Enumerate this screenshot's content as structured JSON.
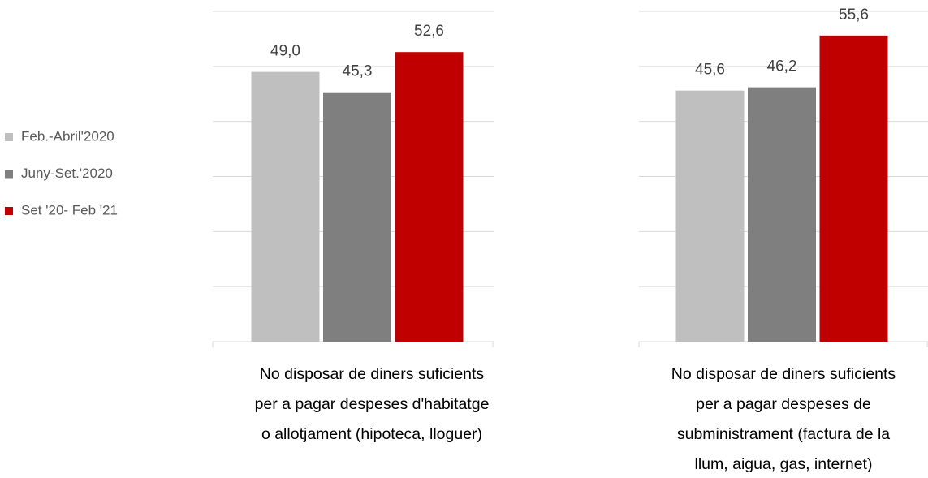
{
  "chart_data": {
    "type": "bar",
    "categories": [
      "No disposar de diners suficients\nper a pagar despeses d'habitatge\no allotjament (hipoteca, lloguer)",
      "No disposar de diners suficients\nper a pagar despeses de\nsubministrament (factura de la\nllum, aigua, gas, internet)"
    ],
    "series": [
      {
        "name": "Feb.-Abril'2020",
        "color": "#bfbfbf",
        "values": [
          49.0,
          45.6
        ],
        "value_labels": [
          "49,0",
          "45,6"
        ]
      },
      {
        "name": "Juny-Set.'2020",
        "color": "#7f7f7f",
        "values": [
          45.3,
          46.2
        ],
        "value_labels": [
          "45,3",
          "46,2"
        ]
      },
      {
        "name": "Set '20- Feb '21",
        "color": "#c00000",
        "values": [
          52.6,
          55.6
        ],
        "value_labels": [
          "52,6",
          "55,6"
        ]
      }
    ],
    "ylim": [
      0,
      60
    ],
    "yticks": [
      0,
      10,
      20,
      30,
      40,
      50,
      60
    ],
    "grid": true,
    "legend": "left"
  }
}
